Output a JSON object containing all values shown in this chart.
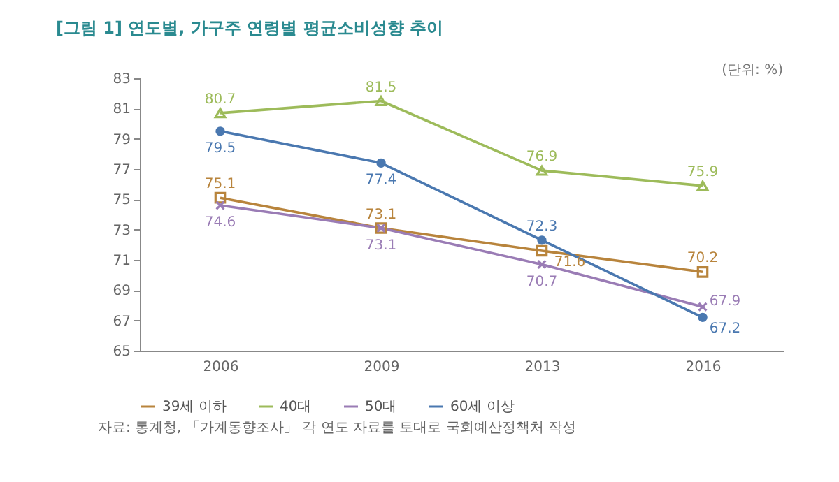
{
  "chart_data": {
    "type": "line",
    "title": "[그림 1] 연도별, 가구주 연령별 평균소비성향 추이",
    "categories": [
      "2006",
      "2009",
      "2013",
      "2016"
    ],
    "series": [
      {
        "name": "39세 이하",
        "color": "#b8843c",
        "marker": "square",
        "values": [
          75.1,
          73.1,
          71.6,
          70.2
        ]
      },
      {
        "name": "40대",
        "color": "#9dbb5a",
        "marker": "triangle",
        "values": [
          80.7,
          81.5,
          76.9,
          75.9
        ]
      },
      {
        "name": "50대",
        "color": "#9a7cb5",
        "marker": "cross",
        "values": [
          74.6,
          73.1,
          70.7,
          67.9
        ]
      },
      {
        "name": "60세 이상",
        "color": "#4a78b0",
        "marker": "circle",
        "values": [
          79.5,
          77.4,
          72.3,
          67.2
        ]
      }
    ],
    "ylim": [
      65,
      83
    ],
    "yticks": [
      65,
      67,
      69,
      71,
      73,
      75,
      77,
      79,
      81,
      83
    ],
    "grid": false,
    "legend": "bottom",
    "data_labels": true,
    "line_style": "solid",
    "annotations": [
      "(단위: %)",
      "자료: 통계청, 「가계동향조사」 각 연도 자료를 토대로 국회예산정책처 작성"
    ]
  }
}
